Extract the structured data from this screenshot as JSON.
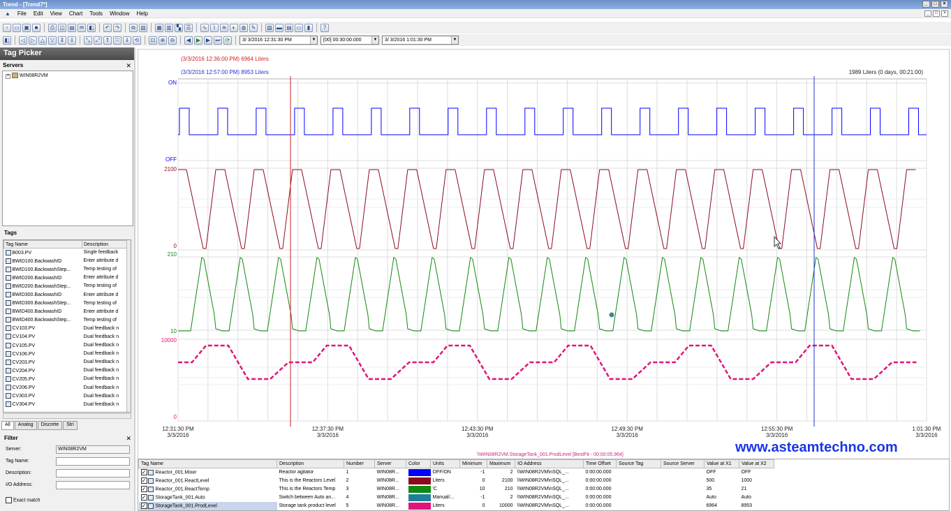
{
  "window": {
    "title": "Trend - [Trend7*]"
  },
  "menu": [
    "File",
    "Edit",
    "View",
    "Chart",
    "Tools",
    "Window",
    "Help"
  ],
  "toolbar": {
    "start_time": "3/ 3/2016 12:31:30 PM",
    "duration": "[00] 00:30:00.000",
    "end_time": "3/ 3/2016   1:01:30 PM"
  },
  "tag_picker": {
    "title": "Tag Picker",
    "servers_label": "Servers",
    "server_node": "WIN08R2VM",
    "tags_label": "Tags",
    "columns": [
      "Tag Name",
      "Description"
    ],
    "rows": [
      {
        "name": "B003.PV",
        "desc": "Single feedback"
      },
      {
        "name": "BWID100.BackwashID",
        "desc": "Enter attribute d"
      },
      {
        "name": "BWID100.BackwashStep...",
        "desc": "Temp testing of"
      },
      {
        "name": "BWID200.BackwashID",
        "desc": "Enter attribute d"
      },
      {
        "name": "BWID200.BackwashStep...",
        "desc": "Temp testing of"
      },
      {
        "name": "BWID300.BackwashID",
        "desc": "Enter attribute d"
      },
      {
        "name": "BWID300.BackwashStep...",
        "desc": "Temp testing of"
      },
      {
        "name": "BWID400.BackwashID",
        "desc": "Enter attribute d"
      },
      {
        "name": "BWID400.BackwashStep...",
        "desc": "Temp testing of"
      },
      {
        "name": "CV103.PV",
        "desc": "Dual feedback n"
      },
      {
        "name": "CV104.PV",
        "desc": "Dual feedback n"
      },
      {
        "name": "CV105.PV",
        "desc": "Dual feedback n"
      },
      {
        "name": "CV106.PV",
        "desc": "Dual feedback n"
      },
      {
        "name": "CV203.PV",
        "desc": "Dual feedback n"
      },
      {
        "name": "CV204.PV",
        "desc": "Dual feedback n"
      },
      {
        "name": "CV205.PV",
        "desc": "Dual feedback n"
      },
      {
        "name": "CV206.PV",
        "desc": "Dual feedback n"
      },
      {
        "name": "CV303.PV",
        "desc": "Dual feedback n"
      },
      {
        "name": "CV304.PV",
        "desc": "Dual feedback n"
      }
    ],
    "tabs": [
      "All",
      "Analog",
      "Discrete",
      "Stri"
    ],
    "filter_label": "Filter",
    "filter": {
      "server_label": "Server:",
      "server_value": "WIN08R2VM",
      "tagname_label": "Tag Name:",
      "description_label": "Description:",
      "io_label": "I/O Address:",
      "exact_label": "Exact match"
    }
  },
  "chart": {
    "cursor1_label": "(3/3/2016 12:36:00 PM) 6964 Liters",
    "cursor2_label": "(3/3/2016 12:57:00 PM) 8953 Liters",
    "delta_label": "1989 Liters (0 days, 00:21:00)",
    "band1_top": "ON",
    "band1_bottom": "OFF",
    "band2_top": "2100",
    "band2_bottom": "0",
    "band3_top": "210",
    "band3_bottom": "10",
    "band4_top": "10000",
    "band4_bottom": "0",
    "x_ticks": [
      {
        "time": "12:31:30 PM",
        "date": "3/3/2016"
      },
      {
        "time": "12:37:30 PM",
        "date": "3/3/2016"
      },
      {
        "time": "12:43:30 PM",
        "date": "3/3/2016"
      },
      {
        "time": "12:49:30 PM",
        "date": "3/3/2016"
      },
      {
        "time": "12:55:30 PM",
        "date": "3/3/2016"
      },
      {
        "time": "1:01:30 PM",
        "date": "3/3/2016"
      }
    ],
    "status_line": "\\\\WIN08R2VM.StorageTank_001.ProdLevel [BestFit - 00:00:05.964]",
    "colors": {
      "mixer": "#0000ff",
      "level": "#8b0a1e",
      "temp": "#118811",
      "auto": "#1f7f9a",
      "prodlevel": "#e0147a",
      "cursor1": "#cc2222",
      "cursor2": "#2233cc"
    }
  },
  "watermark": "www.asteamtechno.com",
  "grid": {
    "columns": [
      "Tag Name",
      "Description",
      "Number",
      "Server",
      "Color",
      "Units",
      "Minimum",
      "Maximum",
      "IO Address",
      "Time Offset",
      "Source Tag",
      "Source Server",
      "Value at X1",
      "Value at X2"
    ],
    "rows": [
      {
        "name": "Reactor_001.Mixer",
        "desc": "Reactor agitator",
        "num": "1",
        "server": "WIN08R...",
        "color": "#0000ff",
        "units": "OFF/ON",
        "min": "-1",
        "max": "2",
        "io": "\\\\WIN08R2VM\\nSQL_...",
        "offset": "0:00:00.000",
        "x1": "OFF",
        "x2": "OFF"
      },
      {
        "name": "Reactor_001.ReactLevel",
        "desc": "This is the Reactors Level",
        "num": "2",
        "server": "WIN08R...",
        "color": "#8b0a1e",
        "units": "Liters",
        "min": "0",
        "max": "2100",
        "io": "\\\\WIN08R2VM\\nSQL_...",
        "offset": "0:00:00.000",
        "x1": "500",
        "x2": "1000"
      },
      {
        "name": "Reactor_001.ReactTemp",
        "desc": "This is the Reactors Temp",
        "num": "3",
        "server": "WIN08R...",
        "color": "#118811",
        "units": "'C",
        "min": "10",
        "max": "210",
        "io": "\\\\WIN08R2VM\\nSQL_...",
        "offset": "0:00:00.000",
        "x1": "35",
        "x2": "21"
      },
      {
        "name": "StorageTank_001.Auto",
        "desc": "Switch between Auto an...",
        "num": "4",
        "server": "WIN08R...",
        "color": "#1f7f9a",
        "units": "Manual/...",
        "min": "-1",
        "max": "2",
        "io": "\\\\WIN08R2VM\\nSQL_...",
        "offset": "0:00:00.000",
        "x1": "Auto",
        "x2": "Auto"
      },
      {
        "name": "StorageTank_001.ProdLevel",
        "desc": "Storage tank product level",
        "num": "5",
        "server": "WIN08R...",
        "color": "#e0147a",
        "units": "Liters",
        "min": "0",
        "max": "10000",
        "io": "\\\\WIN08R2VM\\nSQL_...",
        "offset": "0:00:00.000",
        "x1": "6964",
        "x2": "8953"
      }
    ]
  }
}
